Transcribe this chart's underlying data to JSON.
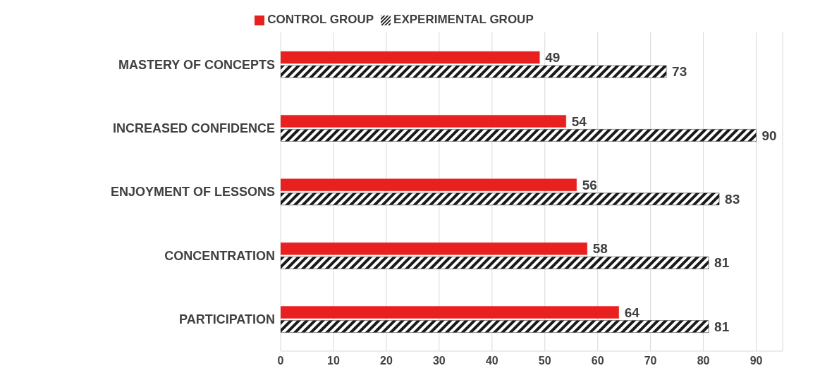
{
  "chart_data": {
    "type": "bar",
    "orientation": "horizontal",
    "categories": [
      "MASTERY  OF CONCEPTS",
      "INCREASED CONFIDENCE",
      "ENJOYMENT OF LESSONS",
      "CONCENTRATION",
      "PARTICIPATION"
    ],
    "series": [
      {
        "name": "CONTROL GROUP",
        "color": "#e8201f",
        "values": [
          49,
          54,
          56,
          58,
          64
        ]
      },
      {
        "name": "EXPERIMENTAL  GROUP",
        "color": "#1a1a1a",
        "values": [
          73,
          90,
          83,
          81,
          81
        ]
      }
    ],
    "xlim": [
      0,
      95
    ],
    "xticks": [
      0,
      10,
      20,
      30,
      40,
      50,
      60,
      70,
      80,
      90
    ],
    "grid": "x",
    "legend": "top",
    "data_labels": true
  }
}
